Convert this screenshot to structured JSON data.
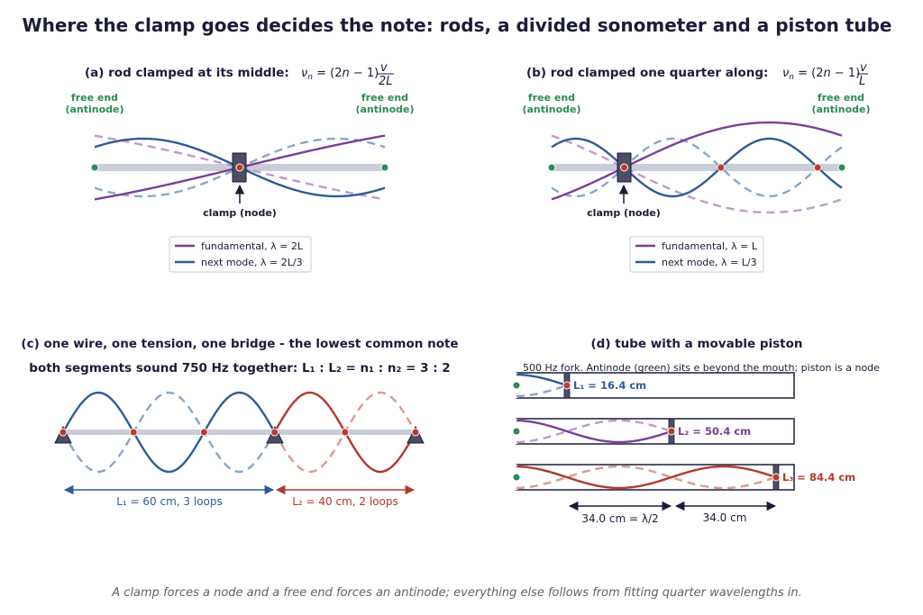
{
  "title": "Where the clamp goes decides the note: rods, a divided sonometer and a piston tube",
  "footer": "A clamp forces a node and a free end forces an antinode; everything else follows from fitting quarter wavelengths in.",
  "colors": {
    "fundamental": "#7b3f98",
    "fundamental_faded": "#bf9acc",
    "next_mode": "#2e5c96",
    "next_mode_faded": "#8aa6c6",
    "red": "#b03a2e",
    "red_faded": "#d89a90",
    "antinode": "#2e8a57",
    "node": "#c0392b",
    "rod": "#c9ccd9",
    "clamp": "#4b4f66",
    "ink": "#1c1c3a"
  },
  "panel_a": {
    "label": "(a)  rod clamped at its middle:",
    "formula": "ν_n = (2n − 1) v / 2L",
    "left_end": [
      "free end",
      "(antinode)"
    ],
    "right_end": [
      "free end",
      "(antinode)"
    ],
    "clamp_label": "clamp (node)",
    "clamp_position": 0.5,
    "legend": [
      {
        "text": "fundamental,  λ = 2L",
        "series": "fundamental"
      },
      {
        "text": "next mode,  λ = 2L/3",
        "series": "next_mode"
      }
    ]
  },
  "panel_b": {
    "label": "(b)  rod clamped one quarter along:",
    "formula": "ν_n = (2n − 1) v / L",
    "left_end": [
      "free end",
      "(antinode)"
    ],
    "right_end": [
      "free end",
      "(antinode)"
    ],
    "clamp_label": "clamp (node)",
    "clamp_position": 0.25,
    "legend": [
      {
        "text": "fundamental,  λ = L",
        "series": "fundamental"
      },
      {
        "text": "next mode,  λ = L/3",
        "series": "next_mode"
      }
    ]
  },
  "panel_c": {
    "label": "(c)  one wire, one tension, one bridge - the lowest common note",
    "subtitle": "both segments sound 750 Hz together:  L₁ : L₂ = n₁ : n₂ = 3 : 2",
    "segment1": {
      "length_cm": 60,
      "loops": 3,
      "label": "L₁ = 60 cm,  3 loops"
    },
    "segment2": {
      "length_cm": 40,
      "loops": 2,
      "label": "L₂ = 40 cm,  2 loops"
    }
  },
  "panel_d": {
    "label": "(d)  tube with a movable piston",
    "subtitle": "500 Hz fork.  Antinode (green) sits e beyond the mouth; piston is a node",
    "tubes": [
      {
        "label": "L₁ = 16.4 cm",
        "length_cm": 16.4,
        "quarter_waves": 1,
        "series": "next_mode"
      },
      {
        "label": "L₂ = 50.4 cm",
        "length_cm": 50.4,
        "quarter_waves": 3,
        "series": "fundamental"
      },
      {
        "label": "L₃ = 84.4 cm",
        "length_cm": 84.4,
        "quarter_waves": 5,
        "series": "red"
      }
    ],
    "dimensions": [
      "34.0 cm = λ/2",
      "34.0 cm"
    ]
  }
}
